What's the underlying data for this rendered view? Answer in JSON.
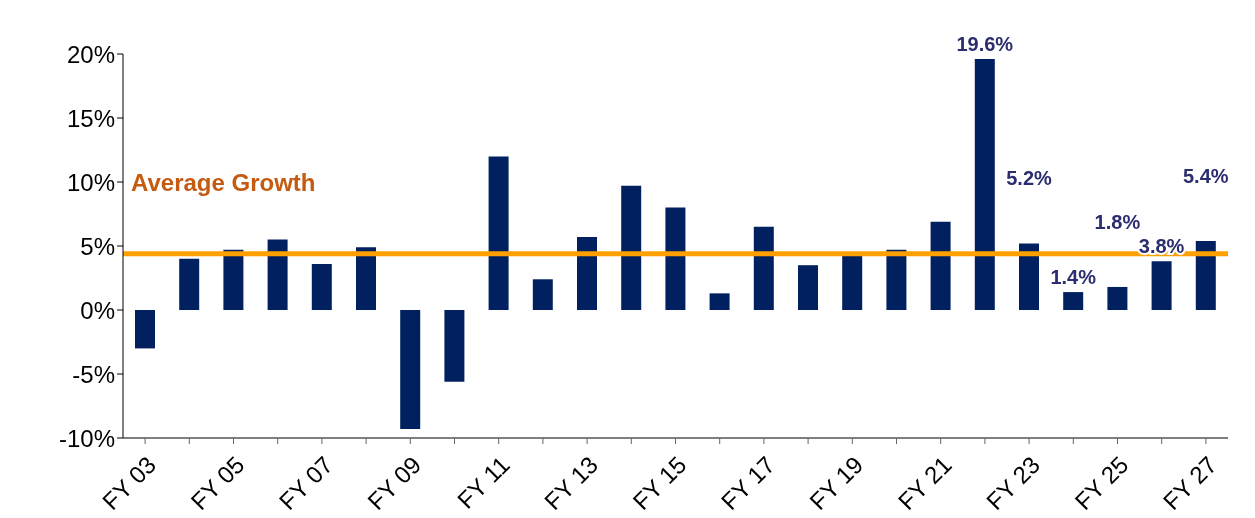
{
  "chart_data": {
    "type": "bar",
    "categories": [
      "FY 03",
      null,
      "FY 05",
      null,
      "FY 07",
      null,
      "FY 09",
      null,
      "FY 11",
      null,
      "FY 13",
      null,
      "FY 15",
      null,
      "FY 17",
      null,
      "FY 19",
      null,
      "FY 21",
      null,
      "FY 23",
      null,
      "FY 25",
      null,
      "FY 27"
    ],
    "values": [
      -3.0,
      4.0,
      4.7,
      5.5,
      3.6,
      4.9,
      -9.3,
      -5.6,
      12.0,
      2.4,
      5.7,
      9.7,
      8.0,
      1.3,
      6.5,
      3.5,
      4.3,
      4.7,
      6.9,
      19.6,
      5.2,
      1.4,
      1.8,
      3.8,
      5.4
    ],
    "value_labels": [
      null,
      null,
      null,
      null,
      null,
      null,
      null,
      null,
      null,
      null,
      null,
      null,
      null,
      null,
      null,
      null,
      null,
      null,
      null,
      "19.6%",
      "5.2%",
      "1.4%",
      "1.8%",
      "3.8%",
      "5.4%"
    ],
    "color": "#002060",
    "ylim": [
      -10,
      20
    ],
    "yticks": [
      {
        "value": -10,
        "label": "-10%"
      },
      {
        "value": -5,
        "label": "-5%"
      },
      {
        "value": 0,
        "label": "0%"
      },
      {
        "value": 5,
        "label": "5%"
      },
      {
        "value": 10,
        "label": "10%"
      },
      {
        "value": 15,
        "label": "15%"
      },
      {
        "value": 20,
        "label": "20%"
      }
    ],
    "ref_lines": [
      {
        "axis": "y",
        "value": 4.4,
        "label": "Average Growth",
        "color": "#ffa000"
      }
    ],
    "grid": false,
    "legend": false
  }
}
